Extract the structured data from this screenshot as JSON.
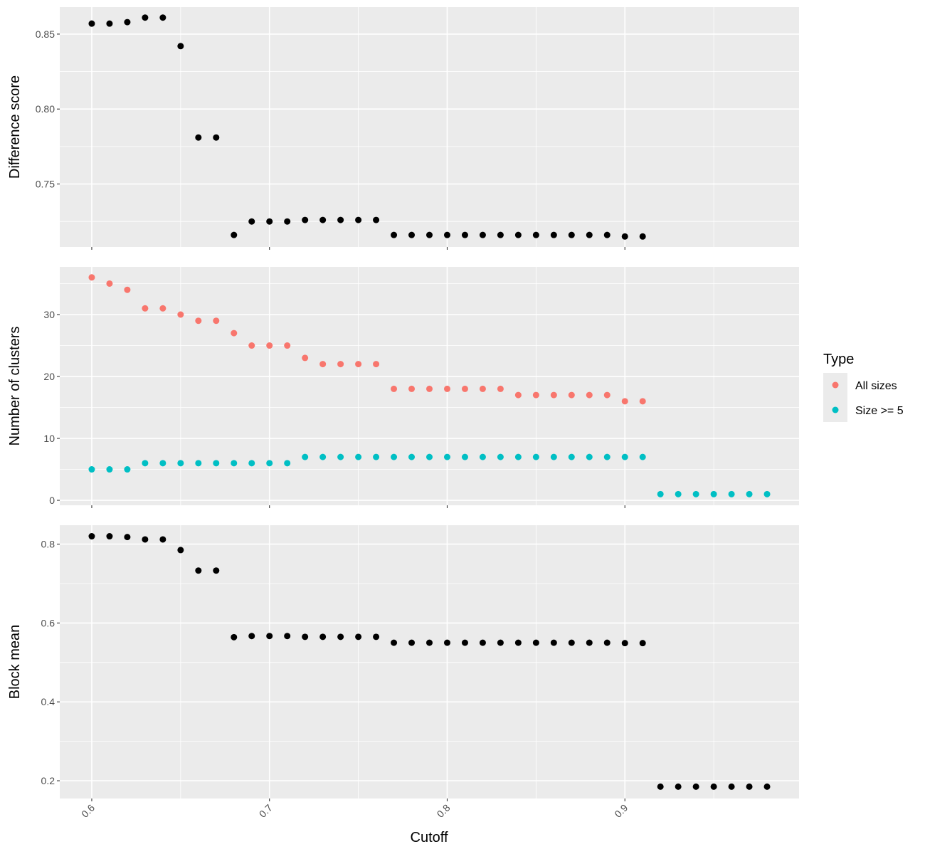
{
  "chart_data": {
    "type": "scatter",
    "x_label": "Cutoff",
    "x_ticks": [
      "0.6",
      "0.7",
      "0.8",
      "0.9"
    ],
    "x_range": [
      0.582,
      0.998
    ],
    "x_tick_values": [
      0.6,
      0.7,
      0.8,
      0.9
    ],
    "grid": true,
    "background_color": "#ebebeb",
    "legend": {
      "title": "Type",
      "position": "right",
      "entries": [
        {
          "label": "All sizes",
          "color": "#f8766d"
        },
        {
          "label": "Size >= 5",
          "color": "#00bfc4"
        }
      ]
    },
    "panels": [
      {
        "ylabel": "Difference score",
        "y_ticks": [
          "0.75",
          "0.80",
          "0.85"
        ],
        "y_tick_values": [
          0.75,
          0.8,
          0.85
        ],
        "ylim": [
          0.708,
          0.868
        ],
        "series": [
          {
            "color": "#000000",
            "x": [
              0.6,
              0.61,
              0.62,
              0.63,
              0.64,
              0.65,
              0.66,
              0.67,
              0.68,
              0.69,
              0.7,
              0.71,
              0.72,
              0.73,
              0.74,
              0.75,
              0.76,
              0.77,
              0.78,
              0.79,
              0.8,
              0.81,
              0.82,
              0.83,
              0.84,
              0.85,
              0.86,
              0.87,
              0.88,
              0.89,
              0.9,
              0.91
            ],
            "y": [
              0.857,
              0.857,
              0.858,
              0.861,
              0.861,
              0.842,
              0.781,
              0.781,
              0.716,
              0.725,
              0.725,
              0.725,
              0.726,
              0.726,
              0.726,
              0.726,
              0.726,
              0.716,
              0.716,
              0.716,
              0.716,
              0.716,
              0.716,
              0.716,
              0.716,
              0.716,
              0.716,
              0.716,
              0.716,
              0.716,
              0.715,
              0.715
            ]
          }
        ]
      },
      {
        "ylabel": "Number of clusters",
        "y_ticks": [
          "0",
          "10",
          "20",
          "30"
        ],
        "y_tick_values": [
          0,
          10,
          20,
          30
        ],
        "ylim": [
          -0.8,
          37.7
        ],
        "series": [
          {
            "name": "All sizes",
            "color": "#f8766d",
            "x": [
              0.6,
              0.61,
              0.62,
              0.63,
              0.64,
              0.65,
              0.66,
              0.67,
              0.68,
              0.69,
              0.7,
              0.71,
              0.72,
              0.73,
              0.74,
              0.75,
              0.76,
              0.77,
              0.78,
              0.79,
              0.8,
              0.81,
              0.82,
              0.83,
              0.84,
              0.85,
              0.86,
              0.87,
              0.88,
              0.89,
              0.9,
              0.91
            ],
            "y": [
              36,
              35,
              34,
              31,
              31,
              30,
              29,
              29,
              27,
              25,
              25,
              25,
              23,
              22,
              22,
              22,
              22,
              18,
              18,
              18,
              18,
              18,
              18,
              18,
              17,
              17,
              17,
              17,
              17,
              17,
              16,
              16
            ]
          },
          {
            "name": "Size >= 5",
            "color": "#00bfc4",
            "x": [
              0.6,
              0.61,
              0.62,
              0.63,
              0.64,
              0.65,
              0.66,
              0.67,
              0.68,
              0.69,
              0.7,
              0.71,
              0.72,
              0.73,
              0.74,
              0.75,
              0.76,
              0.77,
              0.78,
              0.79,
              0.8,
              0.81,
              0.82,
              0.83,
              0.84,
              0.85,
              0.86,
              0.87,
              0.88,
              0.89,
              0.9,
              0.91,
              0.92,
              0.93,
              0.94,
              0.95,
              0.96,
              0.97,
              0.98
            ],
            "y": [
              5,
              5,
              5,
              6,
              6,
              6,
              6,
              6,
              6,
              6,
              6,
              6,
              7,
              7,
              7,
              7,
              7,
              7,
              7,
              7,
              7,
              7,
              7,
              7,
              7,
              7,
              7,
              7,
              7,
              7,
              7,
              7,
              1,
              1,
              1,
              1,
              1,
              1,
              1
            ]
          }
        ]
      },
      {
        "ylabel": "Block mean",
        "y_ticks": [
          "0.2",
          "0.4",
          "0.6",
          "0.8"
        ],
        "y_tick_values": [
          0.2,
          0.4,
          0.6,
          0.8
        ],
        "ylim": [
          0.155,
          0.848
        ],
        "series": [
          {
            "color": "#000000",
            "x": [
              0.6,
              0.61,
              0.62,
              0.63,
              0.64,
              0.65,
              0.66,
              0.67,
              0.68,
              0.69,
              0.7,
              0.71,
              0.72,
              0.73,
              0.74,
              0.75,
              0.76,
              0.77,
              0.78,
              0.79,
              0.8,
              0.81,
              0.82,
              0.83,
              0.84,
              0.85,
              0.86,
              0.87,
              0.88,
              0.89,
              0.9,
              0.91,
              0.92,
              0.93,
              0.94,
              0.95,
              0.96,
              0.97,
              0.98
            ],
            "y": [
              0.82,
              0.82,
              0.818,
              0.812,
              0.812,
              0.785,
              0.733,
              0.733,
              0.564,
              0.567,
              0.567,
              0.567,
              0.565,
              0.565,
              0.565,
              0.565,
              0.565,
              0.55,
              0.55,
              0.55,
              0.55,
              0.55,
              0.55,
              0.55,
              0.55,
              0.55,
              0.55,
              0.55,
              0.55,
              0.55,
              0.549,
              0.549,
              0.185,
              0.185,
              0.185,
              0.185,
              0.185,
              0.185,
              0.185
            ]
          }
        ]
      }
    ]
  }
}
